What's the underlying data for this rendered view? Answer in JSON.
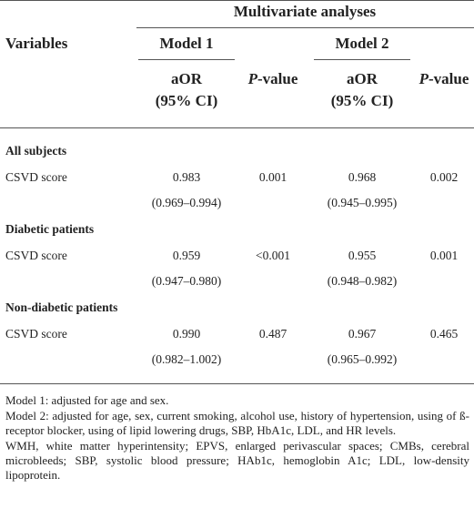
{
  "header": {
    "group": "Multivariate analyses",
    "variables": "Variables",
    "models": [
      "Model 1",
      "Model 2"
    ],
    "aor": [
      "aOR",
      "(95% CI)"
    ],
    "pvalue": {
      "italic": "P",
      "rest": "-value"
    }
  },
  "sections": [
    {
      "label": "All subjects",
      "rows": [
        {
          "variable": "CSVD score",
          "cells": [
            [
              "0.983",
              "(0.969–0.994)"
            ],
            "0.001",
            [
              "0.968",
              "(0.945–0.995)"
            ],
            "0.002"
          ]
        }
      ]
    },
    {
      "label": "Diabetic patients",
      "rows": [
        {
          "variable": "CSVD score",
          "cells": [
            [
              "0.959",
              "(0.947–0.980)"
            ],
            "<0.001",
            [
              "0.955",
              "(0.948–0.982)"
            ],
            "0.001"
          ]
        }
      ]
    },
    {
      "label": "Non-diabetic patients",
      "rows": [
        {
          "variable": "CSVD score",
          "cells": [
            [
              "0.990",
              "(0.982–1.002)"
            ],
            "0.487",
            [
              "0.967",
              "(0.965–0.992)"
            ],
            "0.465"
          ]
        }
      ]
    }
  ],
  "footnotes": [
    "Model 1: adjusted for age and sex.",
    "Model 2: adjusted for age, sex, current smoking, alcohol use, history of hypertension, using of ß-receptor blocker, using of lipid lowering drugs, SBP, HbA1c, LDL, and HR levels.",
    "WMH, white matter hyperintensity; EPVS, enlarged perivascular spaces; CMBs, cerebral microbleeds; SBP, systolic blood pressure; HAb1c, hemoglobin A1c; LDL, low-density lipoprotein."
  ]
}
